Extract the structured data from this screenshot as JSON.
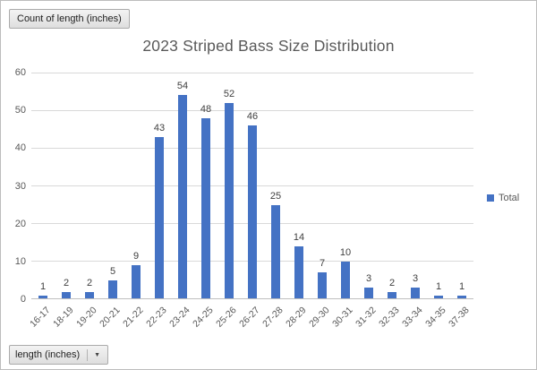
{
  "field_buttons": {
    "value_button": "Count of length (inches)",
    "axis_button": "length (inches)",
    "dropdown_arrow": "▼"
  },
  "chart_data": {
    "type": "bar",
    "title": "2023 Striped Bass Size Distribution",
    "categories": [
      "16-17",
      "18-19",
      "19-20",
      "20-21",
      "21-22",
      "22-23",
      "23-24",
      "24-25",
      "25-26",
      "26-27",
      "27-28",
      "28-29",
      "29-30",
      "30-31",
      "31-32",
      "32-33",
      "33-34",
      "34-35",
      "37-38"
    ],
    "series": [
      {
        "name": "Total",
        "values": [
          1,
          2,
          2,
          5,
          9,
          43,
          54,
          48,
          52,
          46,
          25,
          14,
          7,
          10,
          3,
          2,
          3,
          1,
          1
        ]
      }
    ],
    "xlabel": "length (inches)",
    "ylabel": "Count of length (inches)",
    "ylim": [
      0,
      60
    ],
    "yticks": [
      0,
      10,
      20,
      30,
      40,
      50,
      60
    ],
    "grid": true,
    "data_labels": true,
    "legend_position": "right",
    "bar_color": "#4472C4"
  },
  "legend": {
    "label": "Total",
    "color": "#4472C4"
  }
}
